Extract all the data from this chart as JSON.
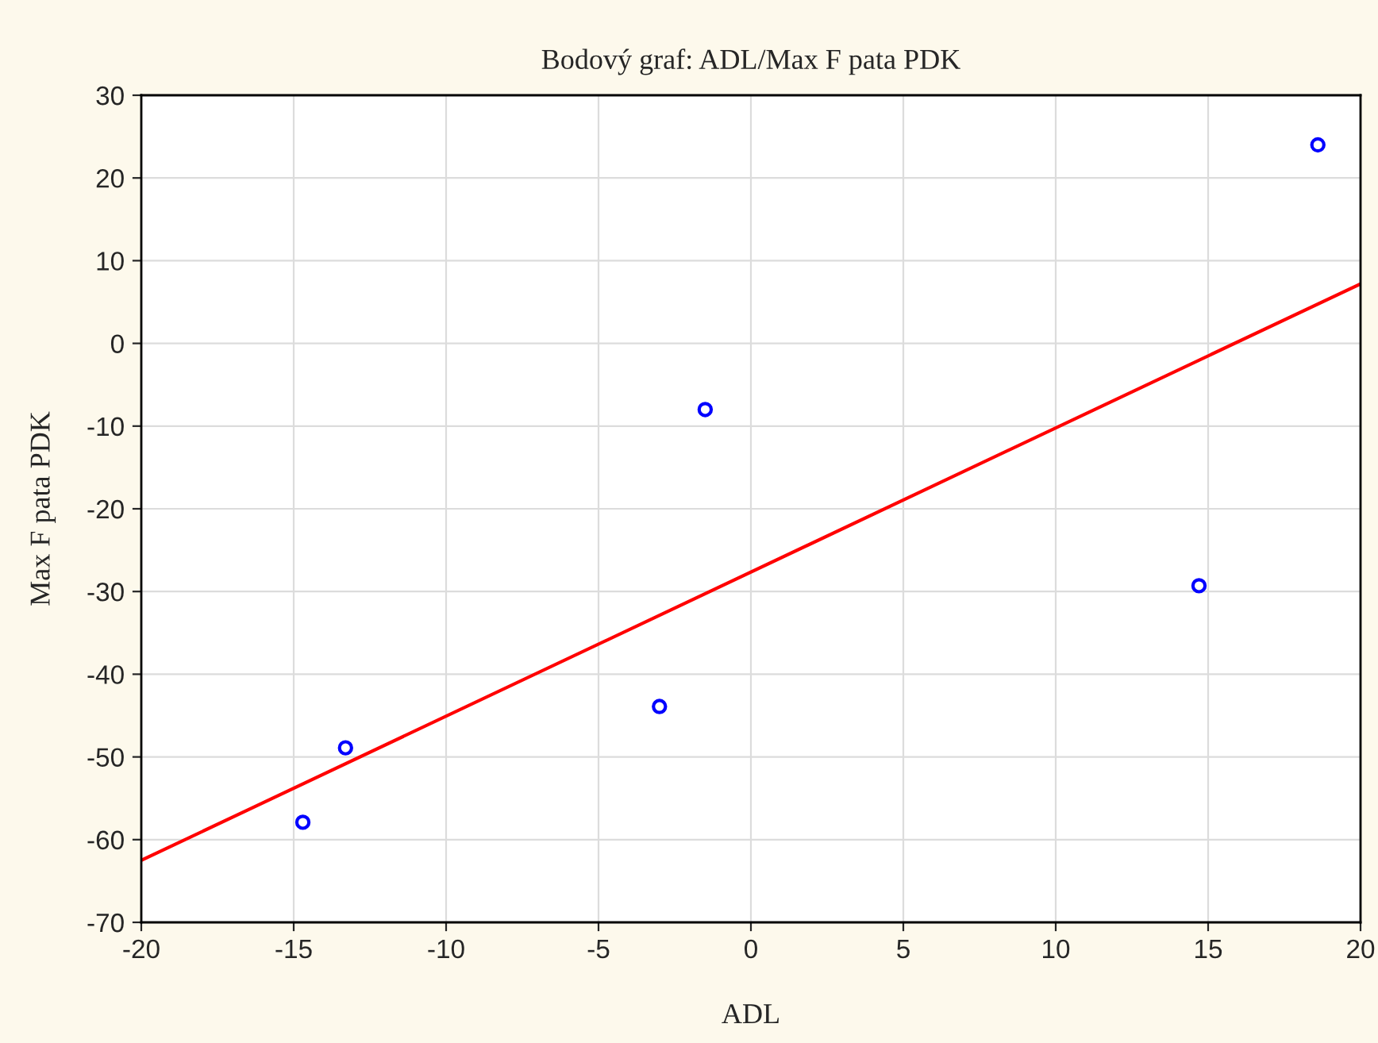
{
  "chart_data": {
    "type": "scatter",
    "title": "Bodový graf: ADL/Max F pata PDK",
    "xlabel": "ADL",
    "ylabel": "Max F pata PDK",
    "series": [
      {
        "color": "#0000ff",
        "marker": "circle",
        "x": [
          -14.7,
          -13.3,
          -3.0,
          -1.5,
          14.7,
          18.6
        ],
        "values": [
          -57.9,
          -48.9,
          -43.9,
          -8.0,
          -29.3,
          24.0
        ]
      },
      {
        "type": "line",
        "color": "#ff0000",
        "marker": "none",
        "line_style": "solid",
        "x": [
          -20,
          20
        ],
        "values": [
          -62.5,
          7.2
        ]
      }
    ],
    "xlim": [
      -20,
      20
    ],
    "xticks": [
      -20,
      -15,
      -10,
      -5,
      0,
      5,
      10,
      15,
      20
    ],
    "ylim": [
      -70,
      30
    ],
    "yticks": [
      -70,
      -60,
      -50,
      -40,
      -30,
      -20,
      -10,
      0,
      10,
      20,
      30
    ],
    "grid": true
  }
}
